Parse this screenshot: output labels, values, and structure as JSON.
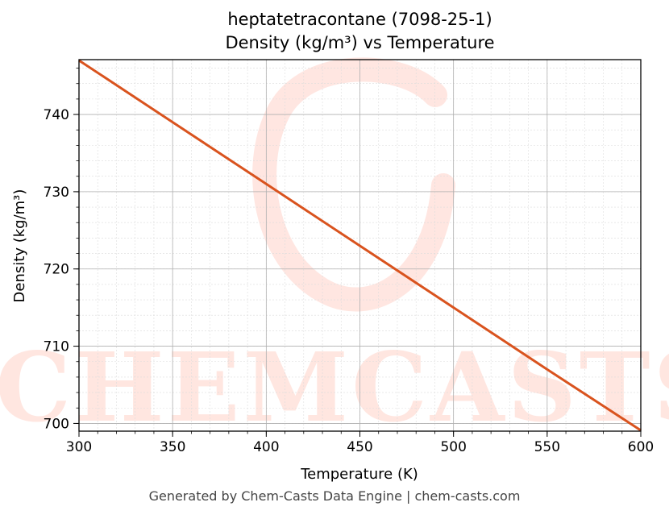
{
  "title_line1": "heptatetracontane (7098-25-1)",
  "title_line2": "Density (kg/m³) vs Temperature",
  "footer": "Generated by Chem-Casts Data Engine | chem-casts.com",
  "watermark": "CHEMCASTS",
  "chart_data": {
    "type": "line",
    "xlabel": "Temperature (K)",
    "ylabel": "Density (kg/m³)",
    "xlim": [
      300,
      600
    ],
    "ylim": [
      699.0,
      747.1
    ],
    "xticks": [
      300,
      350,
      400,
      450,
      500,
      550,
      600
    ],
    "yticks": [
      700,
      710,
      720,
      730,
      740
    ],
    "grid": true,
    "line_color": "#d9531e",
    "series": [
      {
        "x": [
          300,
          350,
          400,
          450,
          500,
          550,
          600
        ],
        "y": [
          747.0,
          739.0,
          731.0,
          723.0,
          715.0,
          707.0,
          699.1
        ]
      }
    ]
  }
}
